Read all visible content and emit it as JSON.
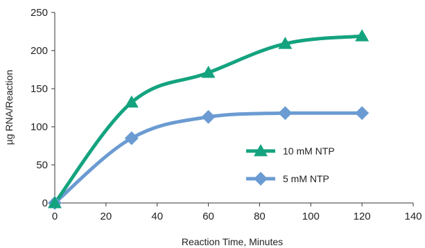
{
  "chart_data": {
    "type": "line",
    "title": "",
    "xlabel": "Reaction Time, Minutes",
    "ylabel": "µg RNA/Reaction",
    "xlim": [
      0,
      140
    ],
    "ylim": [
      0,
      250
    ],
    "xticks": [
      0,
      20,
      40,
      60,
      80,
      100,
      120,
      140
    ],
    "yticks": [
      0,
      50,
      100,
      150,
      200,
      250
    ],
    "grid": false,
    "legend_position": "right",
    "series": [
      {
        "name": "10 mM NTP",
        "color": "#14a37f",
        "marker": "triangle-icon",
        "x": [
          0,
          30,
          60,
          90,
          120
        ],
        "y": [
          0,
          132,
          171,
          209,
          219
        ]
      },
      {
        "name": "5 mM NTP",
        "color": "#6b9bd2",
        "marker": "diamond-icon",
        "x": [
          0,
          30,
          60,
          90,
          120
        ],
        "y": [
          0,
          85,
          113,
          118,
          118
        ]
      }
    ]
  }
}
